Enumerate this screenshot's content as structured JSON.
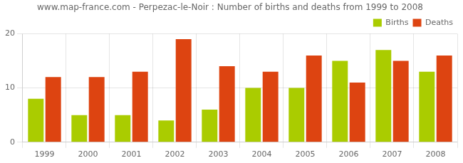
{
  "chart_data": {
    "type": "bar",
    "title": "www.map-france.com - Perpezac-le-Noir : Number of births and deaths from 1999 to 2008",
    "categories": [
      "1999",
      "2000",
      "2001",
      "2002",
      "2003",
      "2004",
      "2005",
      "2006",
      "2007",
      "2008"
    ],
    "series": [
      {
        "name": "Births",
        "color": "#aacc00",
        "values": [
          8,
          5,
          5,
          4,
          6,
          10,
          10,
          15,
          17,
          13
        ]
      },
      {
        "name": "Deaths",
        "color": "#dd4411",
        "values": [
          12,
          12,
          13,
          19,
          14,
          13,
          16,
          11,
          15,
          16
        ]
      }
    ],
    "ylim": [
      0,
      20
    ],
    "yticks": [
      0,
      10,
      20
    ],
    "grid": true,
    "legend": "upper right"
  }
}
